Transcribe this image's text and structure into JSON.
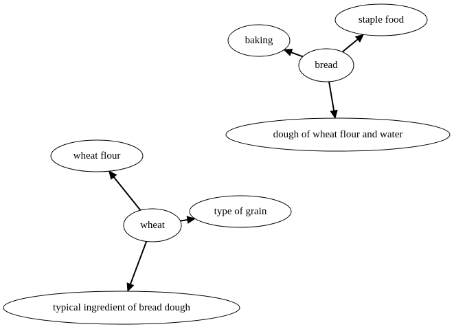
{
  "graph": {
    "nodes": [
      {
        "id": "bread",
        "label": "bread"
      },
      {
        "id": "baking",
        "label": "baking"
      },
      {
        "id": "staple_food",
        "label": "staple food"
      },
      {
        "id": "dough",
        "label": "dough of wheat flour and water"
      },
      {
        "id": "wheat",
        "label": "wheat"
      },
      {
        "id": "wheat_flour",
        "label": "wheat flour"
      },
      {
        "id": "type_of_grain",
        "label": "type of grain"
      },
      {
        "id": "typical_ingredient",
        "label": "typical ingredient of bread dough"
      }
    ],
    "edges": [
      {
        "from": "bread",
        "to": "baking"
      },
      {
        "from": "bread",
        "to": "staple_food"
      },
      {
        "from": "bread",
        "to": "dough"
      },
      {
        "from": "wheat",
        "to": "wheat_flour"
      },
      {
        "from": "wheat",
        "to": "type_of_grain"
      },
      {
        "from": "wheat",
        "to": "typical_ingredient"
      }
    ],
    "colors": {
      "stroke": "#000000",
      "fill": "#ffffff",
      "background": "#ffffff"
    }
  }
}
